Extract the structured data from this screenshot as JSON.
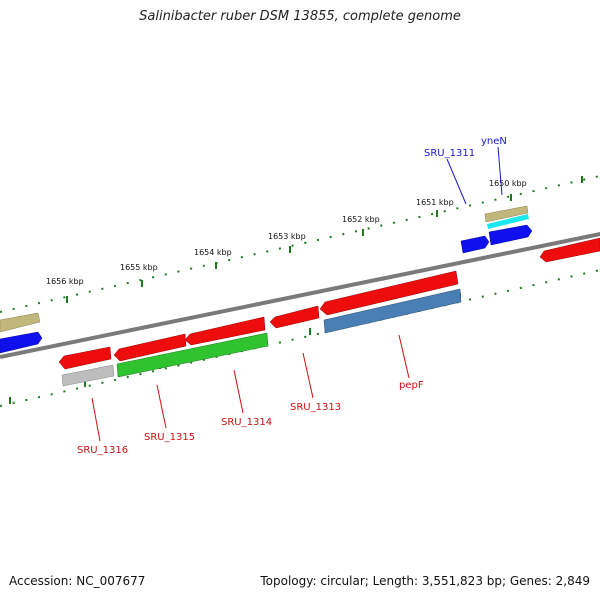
{
  "title": "Salinibacter ruber DSM 13855, complete genome",
  "footer": {
    "accession": "Accession: NC_007677",
    "topology": "Topology: circular; Length: 3,551,823 bp; Genes: 2,849"
  },
  "ticks": [
    "1650 kbp",
    "1651 kbp",
    "1652 kbp",
    "1653 kbp",
    "1654 kbp",
    "1655 kbp",
    "1656 kbp"
  ],
  "gene_labels": {
    "sru_1311": "SRU_1311",
    "ynen": "yneN",
    "sru_1316": "SRU_1316",
    "sru_1315": "SRU_1315",
    "sru_1314": "SRU_1314",
    "sru_1313": "SRU_1313",
    "pepf": "pepF"
  },
  "colors": {
    "backbone": "#7a7a7a",
    "tick": "#1f7a1f",
    "forward_label": "#1a1acc",
    "reverse_label": "#cc1111",
    "gene_red": "#ee0d0d",
    "gene_blue": "#1010ee",
    "gene_green": "#2fc42f",
    "gene_steel": "#4a7fb5",
    "gene_gray": "#bdbdbd",
    "gene_khaki": "#c2b77a",
    "gene_cyan": "#1ae6ee"
  }
}
